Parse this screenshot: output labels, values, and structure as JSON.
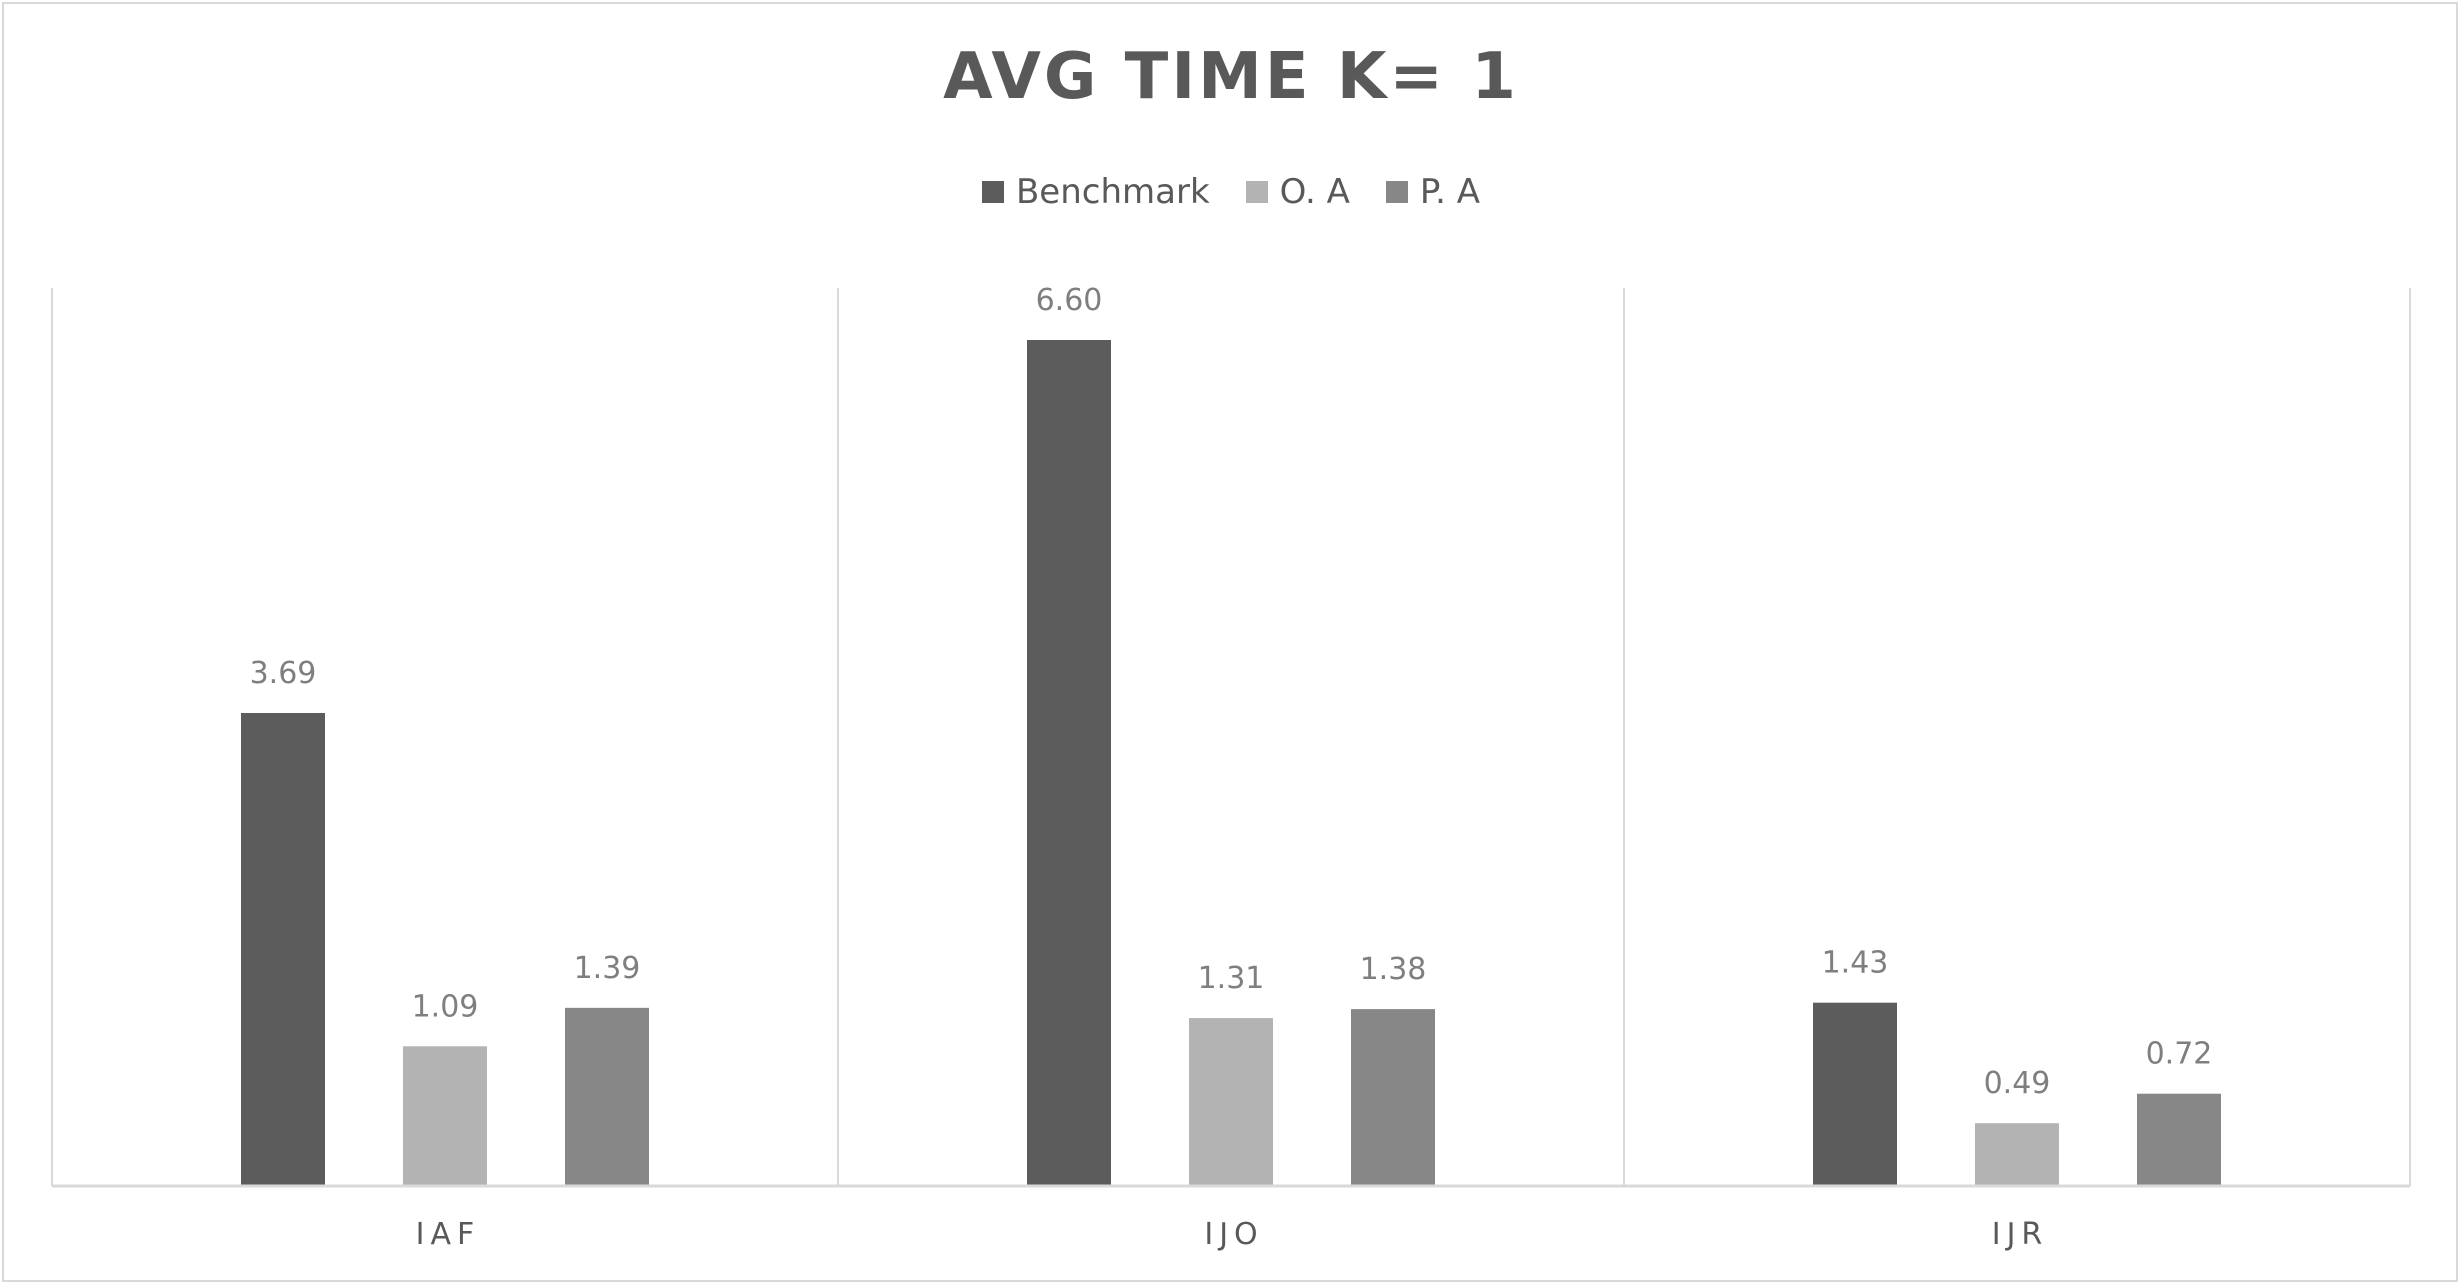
{
  "chart_data": {
    "type": "bar",
    "title": "AVG TIME K= 1",
    "categories": [
      "IAF",
      "IJO",
      "IJR"
    ],
    "series": [
      {
        "name": "Benchmark",
        "values": [
          3.69,
          6.6,
          1.43
        ],
        "labels": [
          "3.69",
          "6.60",
          "1.43"
        ],
        "color": "#5c5c5c"
      },
      {
        "name": "O. A",
        "values": [
          1.09,
          1.31,
          0.49
        ],
        "labels": [
          "1.09",
          "1.31",
          "0.49"
        ],
        "color": "#b3b3b3"
      },
      {
        "name": "P. A",
        "values": [
          1.39,
          1.38,
          0.72
        ],
        "labels": [
          "1.39",
          "1.38",
          "0.72"
        ],
        "color": "#878787"
      }
    ],
    "xlabel": "",
    "ylabel": "",
    "ylim": [
      0,
      7
    ],
    "legend_position": "top",
    "grid": "vertical category separators",
    "data_labels": true
  }
}
